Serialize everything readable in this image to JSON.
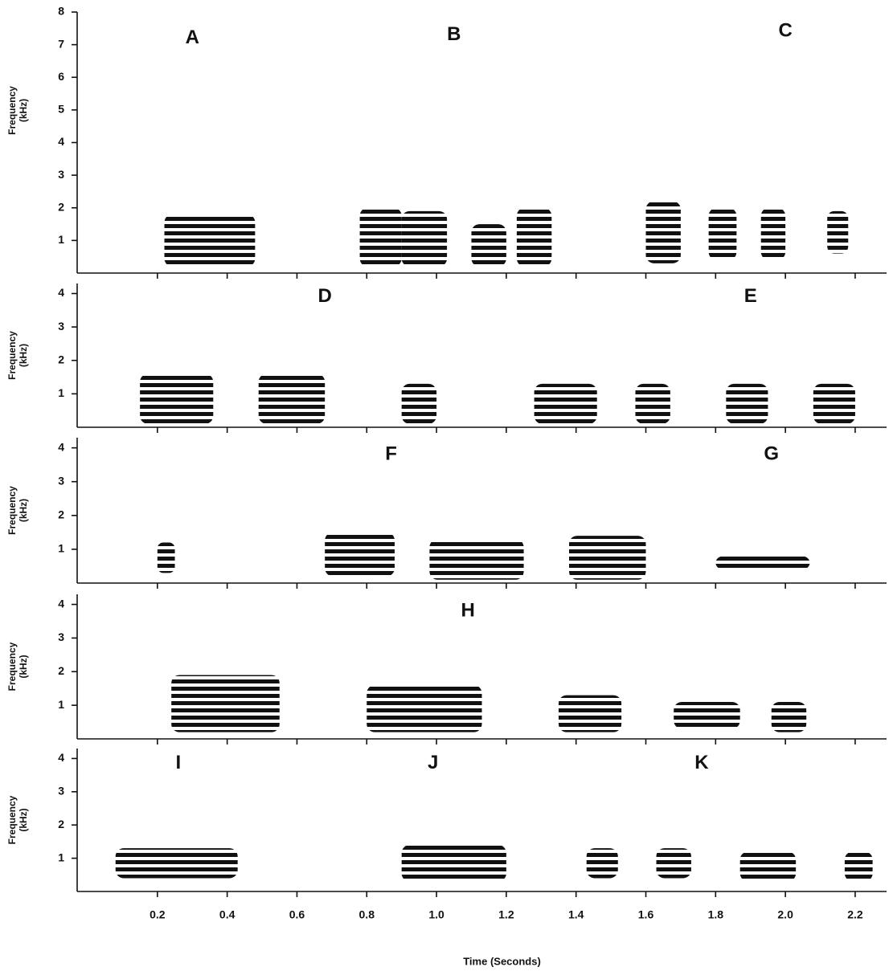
{
  "chart_data": [
    {
      "type": "spectrogram",
      "ylabel": [
        "Frequency",
        "(kHz)"
      ],
      "xlim": [
        -0.03,
        2.29
      ],
      "ylim": [
        0,
        8
      ],
      "yticks": [
        1,
        2,
        3,
        4,
        5,
        6,
        7,
        8
      ],
      "annotations": [
        {
          "text": "A",
          "x": 0.3,
          "y": 7.2
        },
        {
          "text": "B",
          "x": 1.05,
          "y": 7.3
        },
        {
          "text": "C",
          "x": 2.0,
          "y": 7.4
        }
      ],
      "calls": [
        {
          "start": 0.22,
          "end": 0.48,
          "low": 0.2,
          "high": 1.8
        },
        {
          "start": 0.78,
          "end": 0.9,
          "low": 0.2,
          "high": 2.0
        },
        {
          "start": 0.9,
          "end": 1.03,
          "low": 0.2,
          "high": 1.9
        },
        {
          "start": 1.1,
          "end": 1.2,
          "low": 0.2,
          "high": 1.5
        },
        {
          "start": 1.23,
          "end": 1.33,
          "low": 0.2,
          "high": 2.0
        },
        {
          "start": 1.6,
          "end": 1.7,
          "low": 0.3,
          "high": 2.2
        },
        {
          "start": 1.78,
          "end": 1.86,
          "low": 0.4,
          "high": 2.0
        },
        {
          "start": 1.93,
          "end": 2.0,
          "low": 0.4,
          "high": 2.0
        },
        {
          "start": 2.12,
          "end": 2.18,
          "low": 0.6,
          "high": 1.9
        }
      ]
    },
    {
      "type": "spectrogram",
      "ylabel": [
        "Frequency",
        "(kHz)"
      ],
      "xlim": [
        -0.03,
        2.29
      ],
      "ylim": [
        0,
        4.3
      ],
      "yticks": [
        1,
        2,
        3,
        4
      ],
      "annotations": [
        {
          "text": "D",
          "x": 0.68,
          "y": 3.9
        },
        {
          "text": "E",
          "x": 1.9,
          "y": 3.9
        }
      ],
      "calls": [
        {
          "start": 0.15,
          "end": 0.36,
          "low": 0.1,
          "high": 1.6
        },
        {
          "start": 0.49,
          "end": 0.68,
          "low": 0.1,
          "high": 1.6
        },
        {
          "start": 0.9,
          "end": 1.0,
          "low": 0.1,
          "high": 1.3
        },
        {
          "start": 1.28,
          "end": 1.46,
          "low": 0.1,
          "high": 1.3
        },
        {
          "start": 1.57,
          "end": 1.67,
          "low": 0.1,
          "high": 1.3
        },
        {
          "start": 1.83,
          "end": 1.95,
          "low": 0.1,
          "high": 1.3
        },
        {
          "start": 2.08,
          "end": 2.2,
          "low": 0.1,
          "high": 1.3
        }
      ]
    },
    {
      "type": "spectrogram",
      "ylabel": [
        "Frequency",
        "(kHz)"
      ],
      "xlim": [
        -0.03,
        2.29
      ],
      "ylim": [
        0,
        4.3
      ],
      "yticks": [
        1,
        2,
        3,
        4
      ],
      "annotations": [
        {
          "text": "F",
          "x": 0.87,
          "y": 3.8
        },
        {
          "text": "G",
          "x": 1.96,
          "y": 3.8
        }
      ],
      "calls": [
        {
          "start": 0.2,
          "end": 0.25,
          "low": 0.3,
          "high": 1.2
        },
        {
          "start": 0.68,
          "end": 0.88,
          "low": 0.2,
          "high": 1.5
        },
        {
          "start": 0.98,
          "end": 1.25,
          "low": 0.1,
          "high": 1.3
        },
        {
          "start": 1.38,
          "end": 1.6,
          "low": 0.1,
          "high": 1.4
        },
        {
          "start": 1.8,
          "end": 2.07,
          "low": 0.4,
          "high": 0.8
        }
      ]
    },
    {
      "type": "spectrogram",
      "ylabel": [
        "Frequency",
        "(kHz)"
      ],
      "xlim": [
        -0.03,
        2.29
      ],
      "ylim": [
        0,
        4.3
      ],
      "yticks": [
        1,
        2,
        3,
        4
      ],
      "annotations": [
        {
          "text": "H",
          "x": 1.09,
          "y": 3.8
        }
      ],
      "calls": [
        {
          "start": 0.24,
          "end": 0.55,
          "low": 0.2,
          "high": 1.9
        },
        {
          "start": 0.8,
          "end": 1.13,
          "low": 0.2,
          "high": 1.6
        },
        {
          "start": 1.35,
          "end": 1.53,
          "low": 0.2,
          "high": 1.3
        },
        {
          "start": 1.68,
          "end": 1.87,
          "low": 0.3,
          "high": 1.1
        },
        {
          "start": 1.96,
          "end": 2.06,
          "low": 0.2,
          "high": 1.1
        }
      ]
    },
    {
      "type": "spectrogram",
      "ylabel": [
        "Frequency",
        "(kHz)"
      ],
      "xlabel": "Time (Seconds)",
      "xlim": [
        -0.03,
        2.29
      ],
      "ylim": [
        0,
        4.3
      ],
      "yticks": [
        1,
        2,
        3,
        4
      ],
      "xticks": [
        0.2,
        0.4,
        0.6,
        0.8,
        {
          "value": 1,
          "label": "1.0"
        },
        1.2,
        1.4,
        1.6,
        1.8,
        {
          "value": 2,
          "label": "2.0"
        },
        2.2
      ],
      "annotations": [
        {
          "text": "I",
          "x": 0.26,
          "y": 3.85
        },
        {
          "text": "J",
          "x": 0.99,
          "y": 3.85
        },
        {
          "text": "K",
          "x": 1.76,
          "y": 3.85
        }
      ],
      "calls": [
        {
          "start": 0.08,
          "end": 0.43,
          "low": 0.4,
          "high": 1.3
        },
        {
          "start": 0.9,
          "end": 1.2,
          "low": 0.3,
          "high": 1.4
        },
        {
          "start": 1.43,
          "end": 1.52,
          "low": 0.4,
          "high": 1.3
        },
        {
          "start": 1.63,
          "end": 1.73,
          "low": 0.4,
          "high": 1.3
        },
        {
          "start": 1.87,
          "end": 2.03,
          "low": 0.3,
          "high": 1.2
        },
        {
          "start": 2.17,
          "end": 2.25,
          "low": 0.3,
          "high": 1.2
        }
      ]
    }
  ]
}
